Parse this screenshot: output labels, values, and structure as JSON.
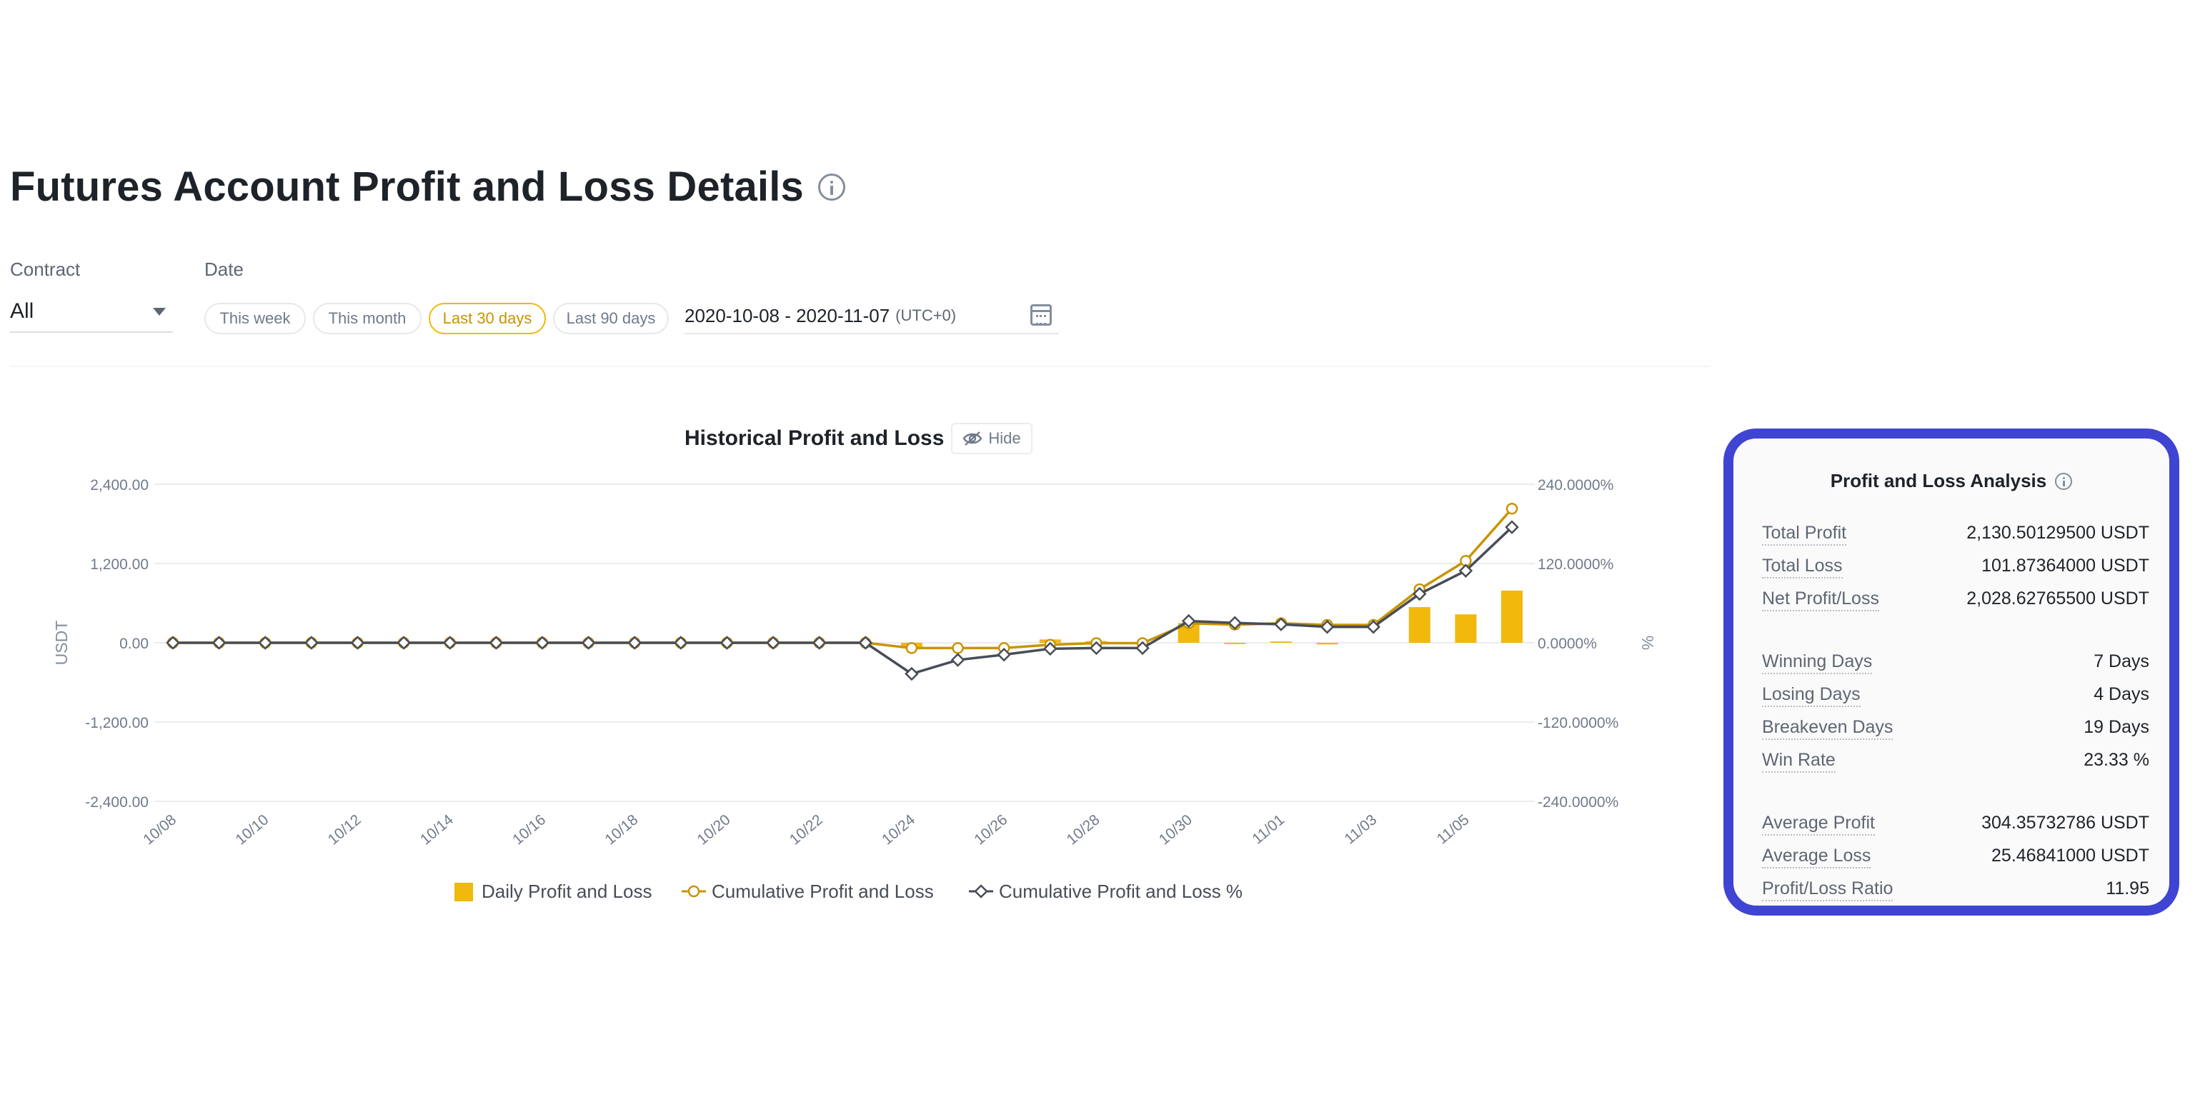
{
  "page": {
    "title": "Futures Account Profit and Loss Details"
  },
  "filters": {
    "contract_label": "Contract",
    "contract_value": "All",
    "date_label": "Date",
    "quick_ranges": [
      "This week",
      "This month",
      "Last 30 days",
      "Last 90 days"
    ],
    "active_range": "Last 30 days",
    "date_range": "2020-10-08 - 2020-11-07",
    "timezone": "(UTC+0)"
  },
  "chart_card": {
    "title": "Historical Profit and Loss",
    "hide_label": "Hide"
  },
  "chart_data": {
    "type": "bar",
    "title": "Historical Profit and Loss",
    "ylabel": "USDT",
    "y2label": "%",
    "ylim": [
      -2400,
      2400
    ],
    "y2lim": [
      -240,
      240
    ],
    "yticks": [
      "2,400.00",
      "1,200.00",
      "0.00",
      "-1,200.00",
      "-2,400.00"
    ],
    "y2ticks": [
      "240.0000%",
      "120.0000%",
      "0.0000%",
      "-120.0000%",
      "-240.0000%"
    ],
    "x": [
      "10/08",
      "10/09",
      "10/10",
      "10/11",
      "10/12",
      "10/13",
      "10/14",
      "10/15",
      "10/16",
      "10/17",
      "10/18",
      "10/19",
      "10/20",
      "10/21",
      "10/22",
      "10/23",
      "10/24",
      "10/25",
      "10/26",
      "10/27",
      "10/28",
      "10/29",
      "10/30",
      "10/31",
      "11/01",
      "11/02",
      "11/03",
      "11/04",
      "11/05",
      "11/06"
    ],
    "xtick_labels": [
      "10/08",
      "10/10",
      "10/12",
      "10/14",
      "10/16",
      "10/18",
      "10/20",
      "10/22",
      "10/24",
      "10/26",
      "10/28",
      "10/30",
      "11/01",
      "11/03",
      "11/05"
    ],
    "series": [
      {
        "name": "Daily Profit and Loss",
        "kind": "bar",
        "color": "#f0b90b",
        "values": [
          0,
          0,
          0,
          0,
          0,
          0,
          0,
          0,
          0,
          0,
          0,
          0,
          0,
          0,
          0,
          0,
          -80,
          0,
          0,
          50,
          25,
          0,
          300,
          -20,
          20,
          -25,
          0,
          540,
          430,
          790
        ]
      },
      {
        "name": "Cumulative Profit and Loss",
        "kind": "line",
        "axis": "left",
        "color": "#c99400",
        "values": [
          0,
          0,
          0,
          0,
          0,
          0,
          0,
          0,
          0,
          0,
          0,
          0,
          0,
          0,
          0,
          0,
          -80,
          -80,
          -80,
          -30,
          -5,
          -5,
          295,
          275,
          295,
          270,
          270,
          810,
          1240,
          2030
        ]
      },
      {
        "name": "Cumulative Profit and Loss %",
        "kind": "line",
        "axis": "right",
        "color": "#474d57",
        "values": [
          0,
          0,
          0,
          0,
          0,
          0,
          0,
          0,
          0,
          0,
          0,
          0,
          0,
          0,
          0,
          0,
          -47,
          -26,
          -18,
          -9,
          -8,
          -8,
          33,
          30,
          28,
          24,
          24,
          74,
          109,
          175
        ]
      }
    ],
    "grid": true,
    "legend": "bottom"
  },
  "analysis": {
    "title": "Profit and Loss Analysis",
    "rows": [
      {
        "label": "Total Profit",
        "value": "2,130.50129500 USDT"
      },
      {
        "label": "Total Loss",
        "value": "101.87364000 USDT"
      },
      {
        "label": "Net Profit/Loss",
        "value": "2,028.62765500 USDT"
      },
      {
        "label": "Winning Days",
        "value": "7 Days"
      },
      {
        "label": "Losing Days",
        "value": "4 Days"
      },
      {
        "label": "Breakeven Days",
        "value": "19 Days"
      },
      {
        "label": "Win Rate",
        "value": "23.33 %"
      },
      {
        "label": "Average Profit",
        "value": "304.35732786 USDT"
      },
      {
        "label": "Average Loss",
        "value": "25.46841000 USDT"
      },
      {
        "label": "Profit/Loss Ratio",
        "value": "11.95"
      }
    ]
  }
}
